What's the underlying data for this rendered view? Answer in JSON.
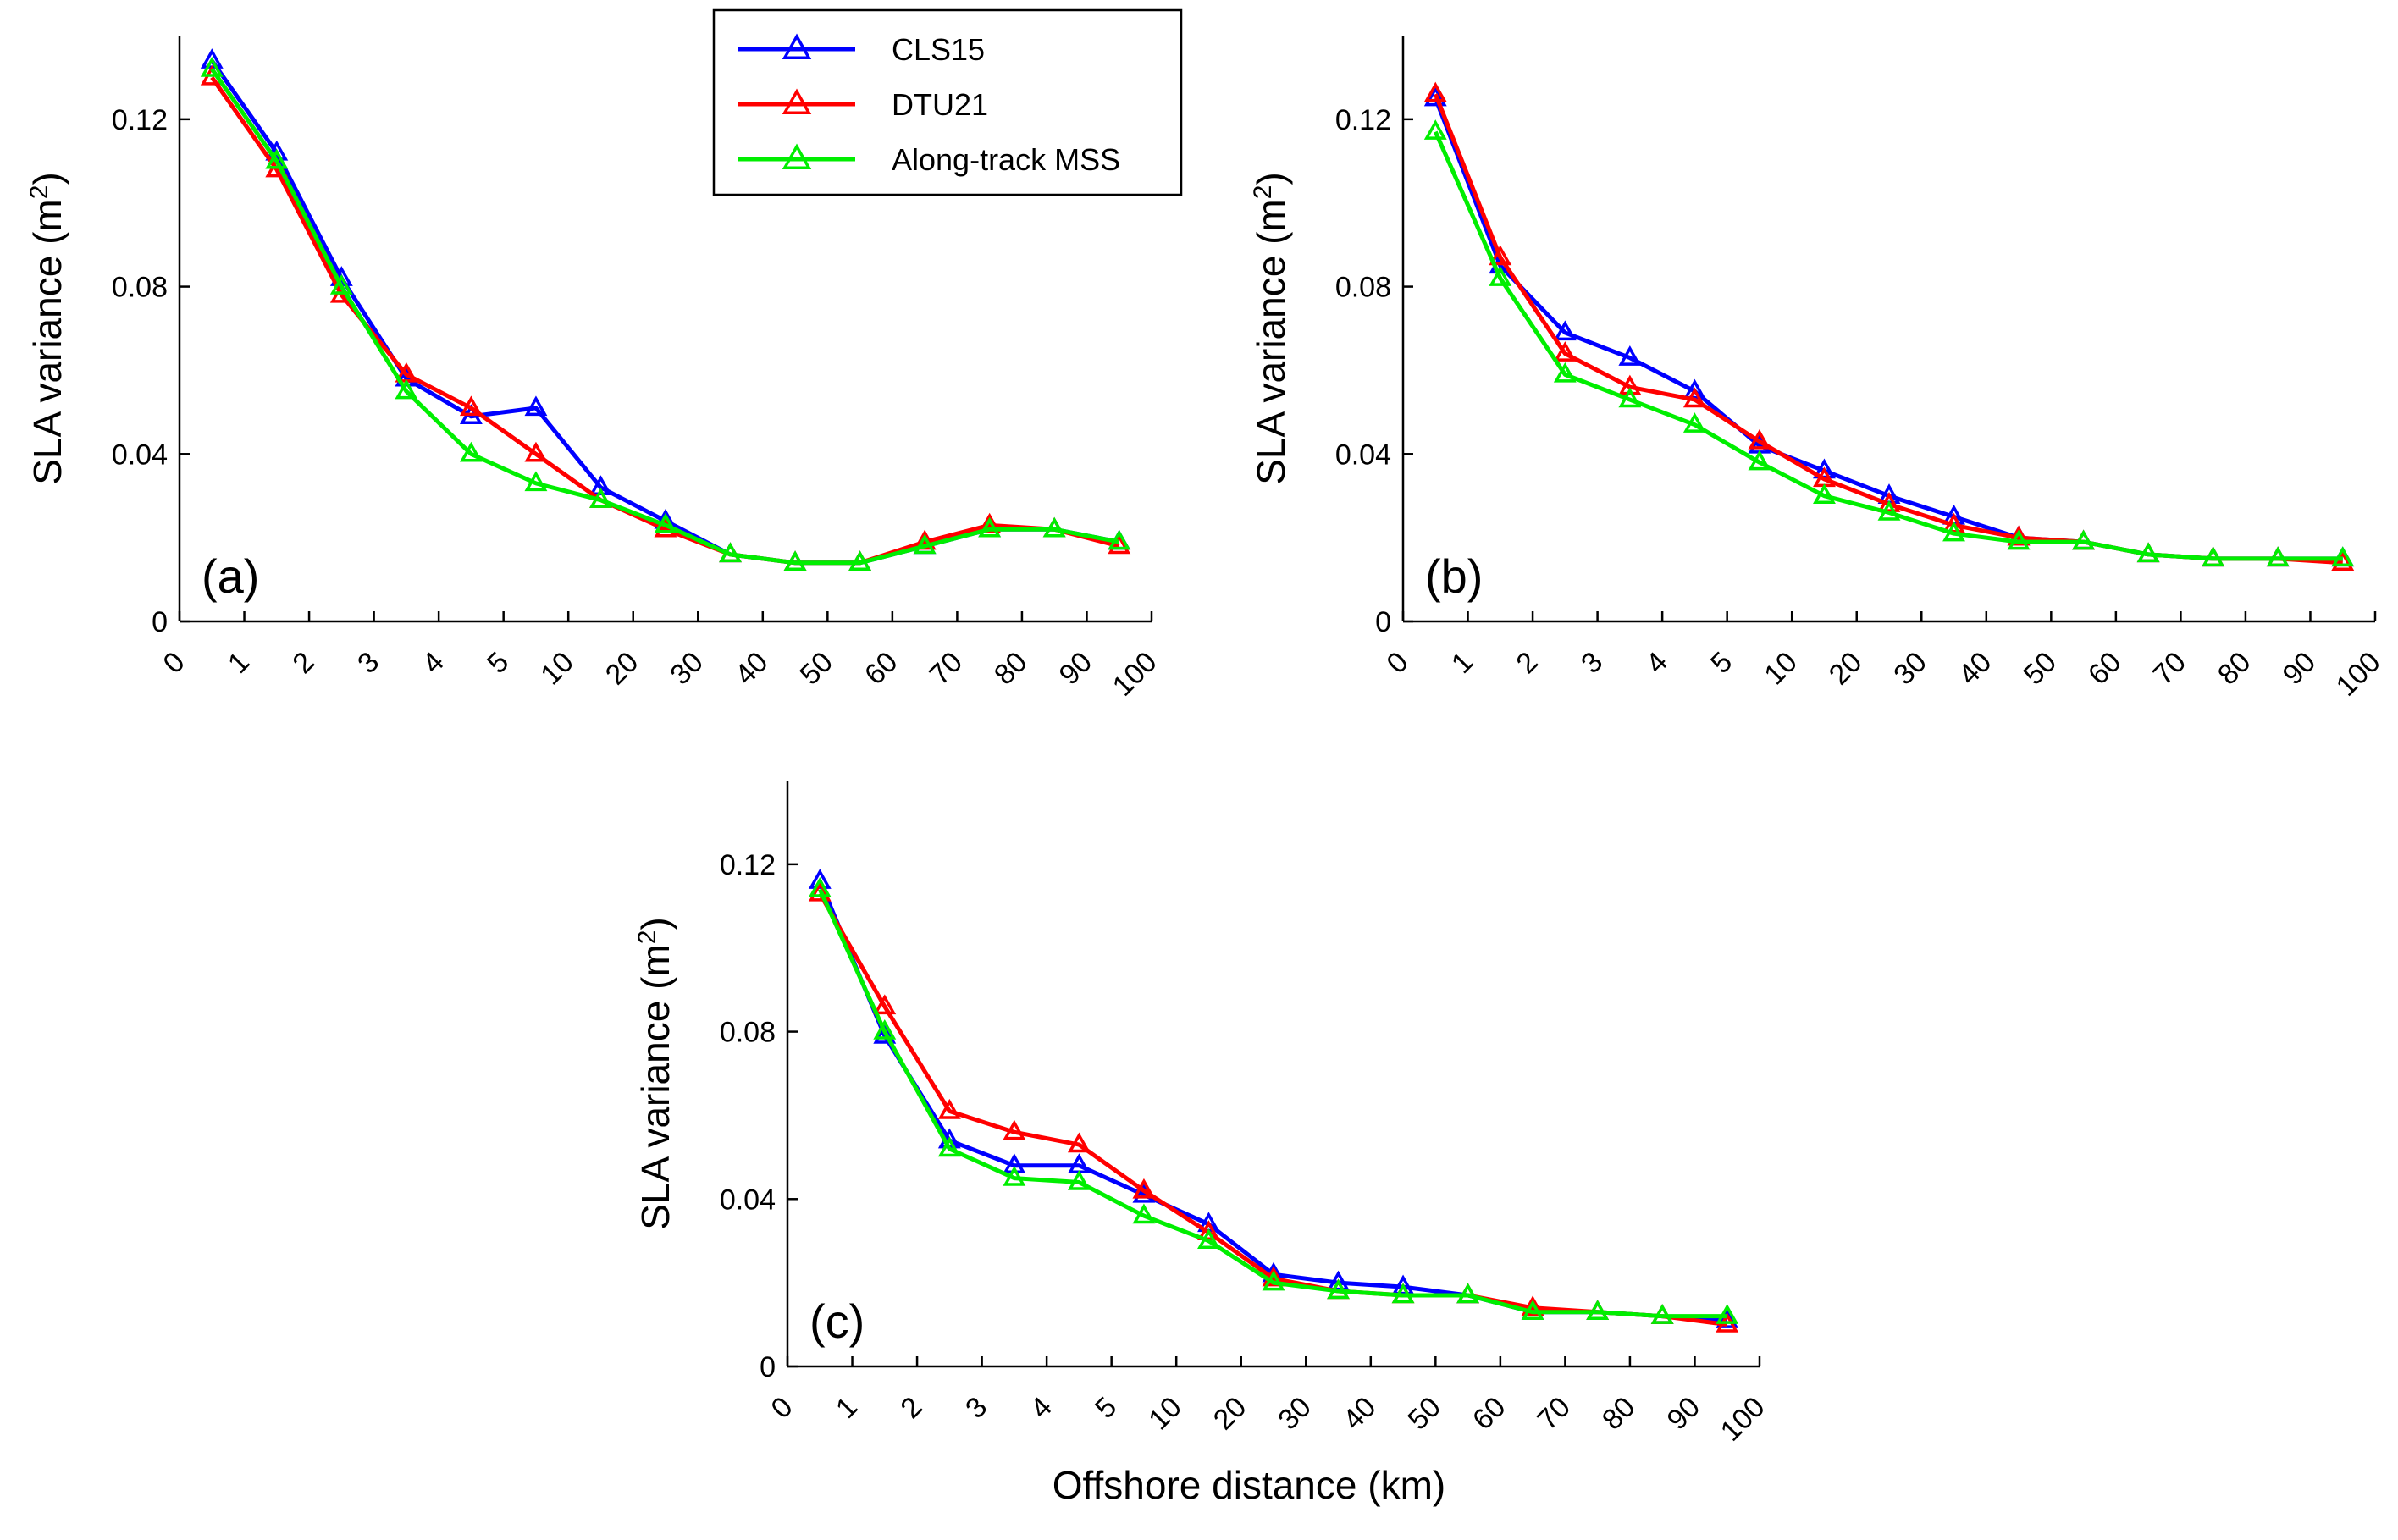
{
  "chart_data": {
    "type": "line",
    "shared_xlabel": "Offshore distance (km)",
    "series_styles": [
      {
        "name": "CLS15",
        "color": "#0000ff"
      },
      {
        "name": "DTU21",
        "color": "#ff0000"
      },
      {
        "name": "Along-track MSS",
        "color": "#00ee00"
      }
    ],
    "x_ticks": [
      "0",
      "1",
      "2",
      "3",
      "4",
      "5",
      "10",
      "20",
      "30",
      "40",
      "50",
      "60",
      "70",
      "80",
      "90",
      "100"
    ],
    "x_positions": [
      0.5,
      1.5,
      2.5,
      3.5,
      4.5,
      5.5,
      6.5,
      7.5,
      8.5,
      9.5,
      10.5,
      11.5,
      12.5,
      13.5,
      14.5
    ],
    "xlim": [
      0,
      15
    ],
    "ylim": [
      0,
      0.14
    ],
    "y_ticks": [
      "0",
      "0.04",
      "0.08",
      "0.12"
    ],
    "y_tick_values": [
      0,
      0.04,
      0.08,
      0.12
    ],
    "ylabel": "SLA variance (m",
    "ylabel_sup": "2",
    "ylabel_close": ")",
    "legend": {
      "position": "top-right of panel (a)",
      "entries": [
        "CLS15",
        "DTU21",
        "Along-track MSS"
      ]
    },
    "panels": [
      {
        "label": "(a)",
        "series": [
          {
            "name": "CLS15",
            "values": [
              0.134,
              0.112,
              0.082,
              0.058,
              0.049,
              0.051,
              0.032,
              0.024,
              0.016,
              0.014,
              0.014,
              0.018,
              0.022,
              0.022,
              0.019
            ]
          },
          {
            "name": "DTU21",
            "values": [
              0.13,
              0.108,
              0.078,
              0.059,
              0.051,
              0.04,
              0.029,
              0.022,
              0.016,
              0.014,
              0.014,
              0.019,
              0.023,
              0.022,
              0.018
            ]
          },
          {
            "name": "Along-track MSS",
            "values": [
              0.132,
              0.11,
              0.08,
              0.055,
              0.04,
              0.033,
              0.029,
              0.023,
              0.016,
              0.014,
              0.014,
              0.018,
              0.022,
              0.022,
              0.019
            ]
          }
        ]
      },
      {
        "label": "(b)",
        "series": [
          {
            "name": "CLS15",
            "values": [
              0.125,
              0.085,
              0.069,
              0.063,
              0.055,
              0.042,
              0.036,
              0.03,
              0.025,
              0.02,
              0.019,
              0.016,
              0.015,
              0.015,
              0.015
            ]
          },
          {
            "name": "DTU21",
            "values": [
              0.126,
              0.087,
              0.064,
              0.056,
              0.053,
              0.043,
              0.034,
              0.028,
              0.023,
              0.02,
              0.019,
              0.016,
              0.015,
              0.015,
              0.014
            ]
          },
          {
            "name": "Along-track MSS",
            "values": [
              0.117,
              0.082,
              0.059,
              0.053,
              0.047,
              0.038,
              0.03,
              0.026,
              0.021,
              0.019,
              0.019,
              0.016,
              0.015,
              0.015,
              0.015
            ]
          }
        ]
      },
      {
        "label": "(c)",
        "series": [
          {
            "name": "CLS15",
            "values": [
              0.116,
              0.079,
              0.054,
              0.048,
              0.048,
              0.041,
              0.034,
              0.022,
              0.02,
              0.019,
              0.017,
              0.013,
              0.013,
              0.012,
              0.011
            ]
          },
          {
            "name": "DTU21",
            "values": [
              0.113,
              0.086,
              0.061,
              0.056,
              0.053,
              0.042,
              0.032,
              0.021,
              0.018,
              0.017,
              0.017,
              0.014,
              0.013,
              0.012,
              0.01
            ]
          },
          {
            "name": "Along-track MSS",
            "values": [
              0.114,
              0.08,
              0.052,
              0.045,
              0.044,
              0.036,
              0.03,
              0.02,
              0.018,
              0.017,
              0.017,
              0.013,
              0.013,
              0.012,
              0.012
            ]
          }
        ]
      }
    ]
  }
}
